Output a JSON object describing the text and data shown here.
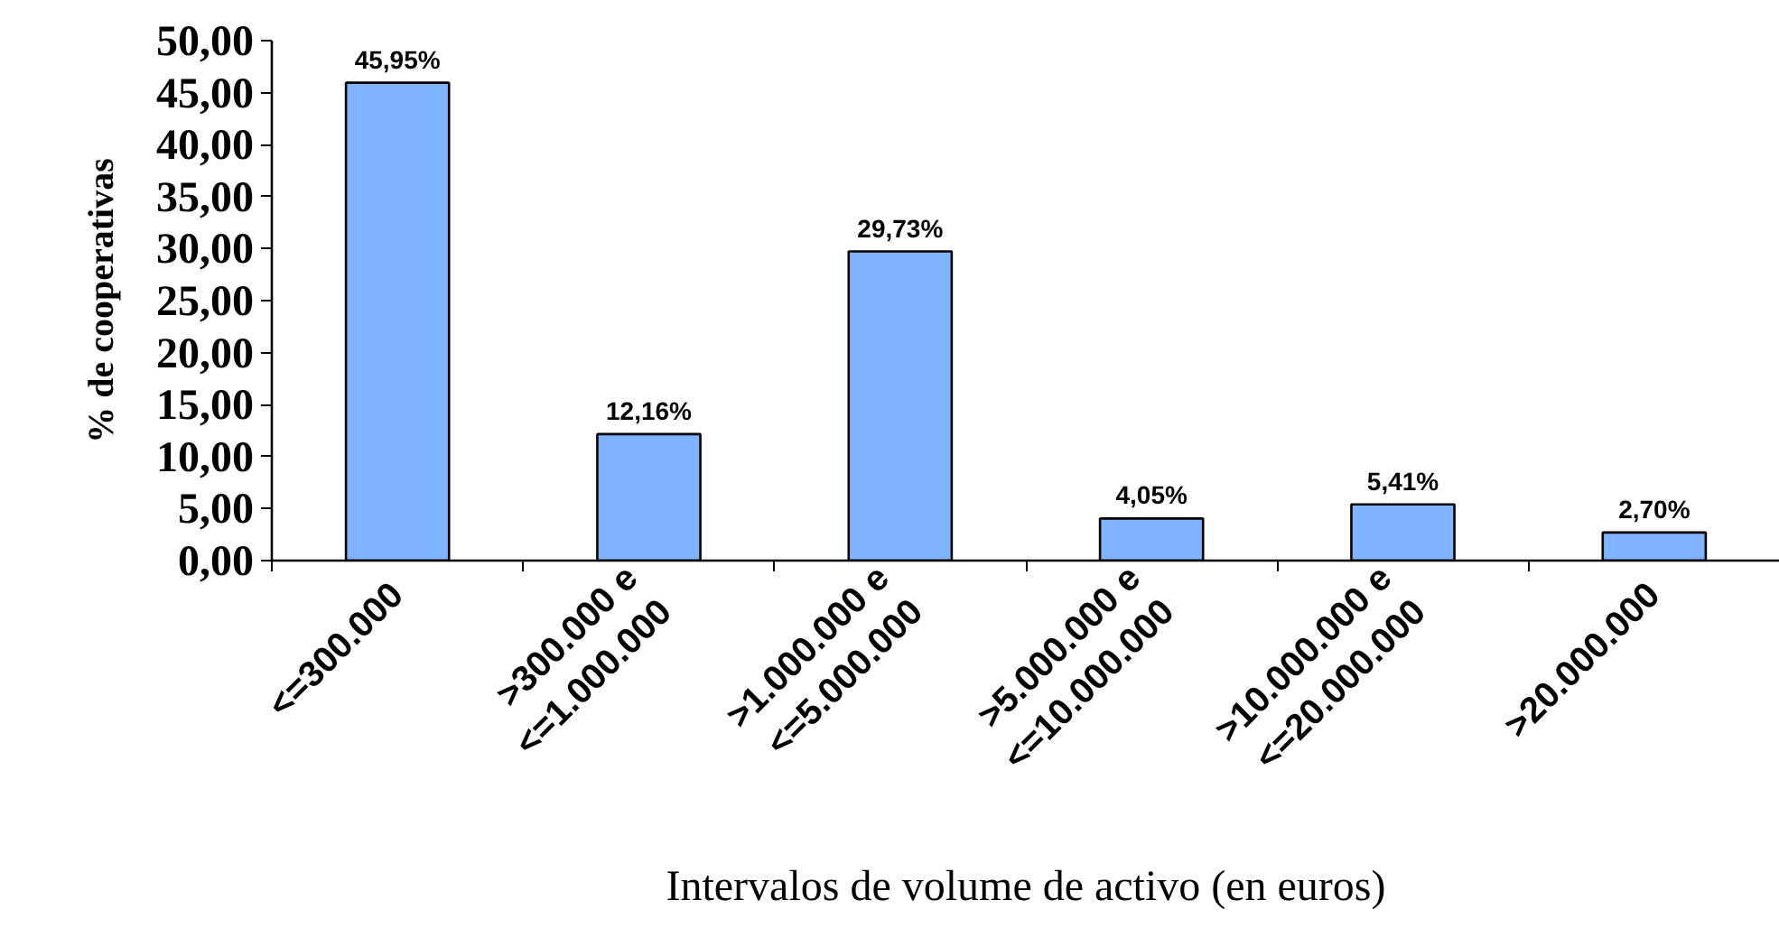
{
  "chart_data": {
    "type": "bar",
    "xlabel": "Intervalos de volume de activo (en euros)",
    "ylabel": "% de cooperativas",
    "categories": [
      "<=300.000",
      ">300.000 e <=1.000.000",
      ">1.000.000 e <=5.000.000",
      ">5.000.000 e <=10.000.000",
      ">10.000.000 e <=20.000.000",
      ">20.000.000"
    ],
    "values": [
      45.95,
      12.16,
      29.73,
      4.05,
      5.41,
      2.7
    ],
    "value_labels": [
      "45,95%",
      "12,16%",
      "29,73%",
      "4,05%",
      "5,41%",
      "2,70%"
    ],
    "color": "#80b3ff",
    "ylim": [
      0,
      50
    ],
    "yticks": [
      {
        "value": 0,
        "label": "0,00"
      },
      {
        "value": 5,
        "label": "5,00"
      },
      {
        "value": 10,
        "label": "10,00"
      },
      {
        "value": 15,
        "label": "15,00"
      },
      {
        "value": 20,
        "label": "20,00"
      },
      {
        "value": 25,
        "label": "25,00"
      },
      {
        "value": 30,
        "label": "30,00"
      },
      {
        "value": 35,
        "label": "35,00"
      },
      {
        "value": 40,
        "label": "40,00"
      },
      {
        "value": 45,
        "label": "45,00"
      },
      {
        "value": 50,
        "label": "50,00"
      }
    ]
  }
}
